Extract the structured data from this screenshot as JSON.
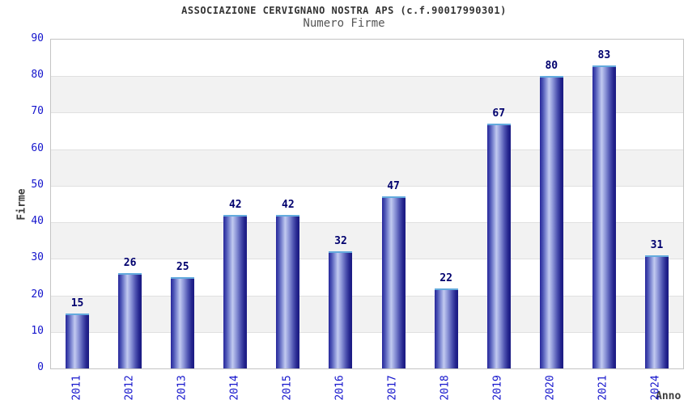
{
  "chart_data": {
    "type": "bar",
    "title": "ASSOCIAZIONE CERVIGNANO NOSTRA APS (c.f.90017990301)",
    "subtitle": "Numero Firme",
    "xlabel": "Anno",
    "ylabel": "Firme",
    "categories": [
      "2011",
      "2012",
      "2013",
      "2014",
      "2015",
      "2016",
      "2017",
      "2018",
      "2019",
      "2020",
      "2021",
      "2024"
    ],
    "values": [
      15,
      26,
      25,
      42,
      42,
      32,
      47,
      22,
      67,
      80,
      83,
      31
    ],
    "ylim": [
      0,
      90
    ],
    "ytick_step": 10,
    "yticks": [
      0,
      10,
      20,
      30,
      40,
      50,
      60,
      70,
      80,
      90
    ],
    "grid": true,
    "legend": false,
    "band_pattern": "alternating horizontal bands, white from 90-80 then gray 80-70, repeating",
    "colors": {
      "bar_edge_dark": "#23238c",
      "bar_center_light": "#c2caf0",
      "bar_top_highlight": "#63aadd",
      "tick_label_blue": "#1414cc",
      "value_label_navy": "#00006e",
      "band_gray": "#f2f2f2",
      "grid_line": "#e0e0e0",
      "frame": "#c4c4c4",
      "title_color": "#333333",
      "subtitle_color": "#555555",
      "axis_title_color": "#3d3d3d",
      "background": "#ffffff"
    }
  }
}
